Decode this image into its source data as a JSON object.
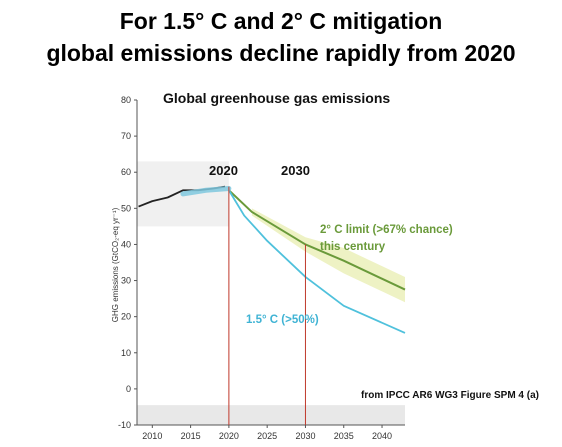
{
  "titles": {
    "line1": "For 1.5° C and 2° C mitigation",
    "line2": "global emissions decline rapidly from 2020"
  },
  "chart_data": {
    "type": "line",
    "title": "Global greenhouse gas emissions",
    "ylabel": "GHG emissions (GtCO₂-eq yr⁻¹)",
    "xlabel": "",
    "xlim": [
      2008,
      2043
    ],
    "ylim": [
      -10,
      80
    ],
    "x_ticks": [
      2010,
      2015,
      2020,
      2025,
      2030,
      2035,
      2040
    ],
    "y_ticks": [
      80,
      70,
      60,
      50,
      40,
      30,
      20,
      10,
      0,
      -10
    ],
    "grid": false,
    "markers": [
      {
        "x": 2020,
        "label": "2020"
      },
      {
        "x": 2030,
        "label": "2030"
      }
    ],
    "series": [
      {
        "id": "historical",
        "x": [
          2008.2,
          2010,
          2012,
          2014,
          2016,
          2018,
          2019.5
        ],
        "y": [
          50.5,
          52,
          53,
          55,
          55,
          55.5,
          56
        ]
      },
      {
        "id": "limit-2c",
        "name": "2° C limit (>67% chance) this century",
        "x": [
          2020,
          2023,
          2030,
          2035,
          2043
        ],
        "y": [
          55,
          49,
          40,
          35.5,
          27.5
        ]
      },
      {
        "id": "limit-1-5c",
        "name": "1.5° C (>50%)",
        "x": [
          2020,
          2022,
          2025,
          2030,
          2035,
          2043
        ],
        "y": [
          55,
          48,
          41,
          31,
          23,
          15.5
        ]
      }
    ],
    "band_2c": {
      "upper": {
        "x": [
          2023,
          2030,
          2035,
          2043
        ],
        "y": [
          50,
          42,
          39,
          31
        ]
      },
      "lower": {
        "x": [
          2023,
          2030,
          2035,
          2043
        ],
        "y": [
          48,
          38,
          32,
          24
        ]
      }
    },
    "annotations": {
      "limit_2c_line1": "2° C limit (>67% chance)",
      "limit_2c_line2": "this century",
      "limit_15c": "1.5° C (>50%)"
    },
    "colors": {
      "limit_2c": "#6a9a3a",
      "limit_15c": "#4fc1dc",
      "band": "#eef2c4",
      "marker": "#c0392b",
      "historical": "#222222"
    }
  },
  "source": "from IPCC AR6 WG3 Figure SPM 4 (a)"
}
